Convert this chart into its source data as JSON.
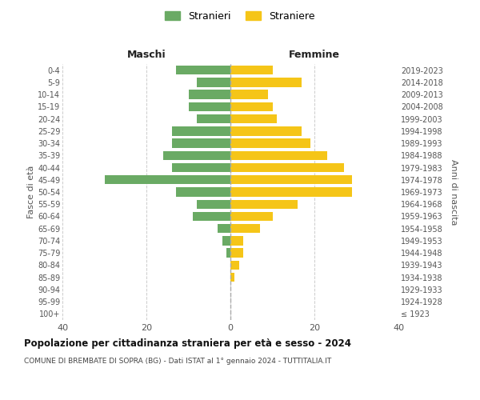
{
  "age_groups": [
    "100+",
    "95-99",
    "90-94",
    "85-89",
    "80-84",
    "75-79",
    "70-74",
    "65-69",
    "60-64",
    "55-59",
    "50-54",
    "45-49",
    "40-44",
    "35-39",
    "30-34",
    "25-29",
    "20-24",
    "15-19",
    "10-14",
    "5-9",
    "0-4"
  ],
  "birth_years": [
    "≤ 1923",
    "1924-1928",
    "1929-1933",
    "1934-1938",
    "1939-1943",
    "1944-1948",
    "1949-1953",
    "1954-1958",
    "1959-1963",
    "1964-1968",
    "1969-1973",
    "1974-1978",
    "1979-1983",
    "1984-1988",
    "1989-1993",
    "1994-1998",
    "1999-2003",
    "2004-2008",
    "2009-2013",
    "2014-2018",
    "2019-2023"
  ],
  "maschi": [
    0,
    0,
    0,
    0,
    0,
    1,
    2,
    3,
    9,
    8,
    13,
    30,
    14,
    16,
    14,
    14,
    8,
    10,
    10,
    8,
    13
  ],
  "femmine": [
    0,
    0,
    0,
    1,
    2,
    3,
    3,
    7,
    10,
    16,
    29,
    29,
    27,
    23,
    19,
    17,
    11,
    10,
    9,
    17,
    10
  ],
  "male_color": "#6aaa64",
  "female_color": "#f5c518",
  "background_color": "#ffffff",
  "grid_color": "#cccccc",
  "title": "Popolazione per cittadinanza straniera per età e sesso - 2024",
  "subtitle": "COMUNE DI BREMBATE DI SOPRA (BG) - Dati ISTAT al 1° gennaio 2024 - TUTTITALIA.IT",
  "ylabel_left": "Fasce di età",
  "ylabel_right": "Anni di nascita",
  "header_left": "Maschi",
  "header_right": "Femmine",
  "legend_male": "Stranieri",
  "legend_female": "Straniere",
  "xlim": 40,
  "xticks": [
    -40,
    -20,
    0,
    20,
    40
  ],
  "xtick_labels": [
    "40",
    "20",
    "0",
    "20",
    "40"
  ]
}
